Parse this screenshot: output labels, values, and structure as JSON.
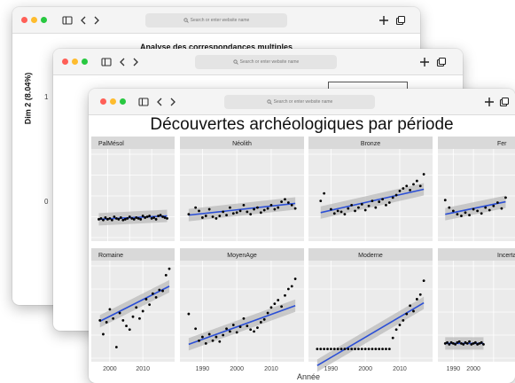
{
  "browser": {
    "address_placeholder": "Search or enter website name",
    "icons": [
      "sidebar-icon",
      "back-icon",
      "forward-icon",
      "search-icon",
      "new-tab-icon",
      "tabs-icon"
    ]
  },
  "window_mca": {
    "title": "Analyse des correspondances multiples",
    "y_axis_label": "Dim 2 (8.04%)",
    "y_ticks": [
      "1",
      "0"
    ]
  },
  "window_middle": {
    "y_ticks": [
      "1",
      "0"
    ]
  },
  "chart_data": {
    "type": "scatter",
    "title": "Découvertes archéologiques par période",
    "xlabel": "Année",
    "facets": [
      {
        "name": "PalMésol",
        "x_ticks": [],
        "xlim": [
          1985,
          2018
        ],
        "ylim": [
          0,
          10
        ],
        "points": [
          [
            1986,
            2.2
          ],
          [
            1987,
            2.3
          ],
          [
            1988,
            2.1
          ],
          [
            1989,
            2.4
          ],
          [
            1990,
            2.2
          ],
          [
            1991,
            2.3
          ],
          [
            1992,
            2.1
          ],
          [
            1993,
            2.5
          ],
          [
            1994,
            2.3
          ],
          [
            1995,
            2.2
          ],
          [
            1996,
            2.4
          ],
          [
            1997,
            2.1
          ],
          [
            1998,
            2.2
          ],
          [
            1999,
            2.3
          ],
          [
            2000,
            2.5
          ],
          [
            2001,
            2.3
          ],
          [
            2002,
            2.2
          ],
          [
            2003,
            2.4
          ],
          [
            2004,
            2.3
          ],
          [
            2005,
            2.2
          ],
          [
            2006,
            2.6
          ],
          [
            2007,
            2.4
          ],
          [
            2008,
            2.5
          ],
          [
            2009,
            2.6
          ],
          [
            2010,
            2.3
          ],
          [
            2011,
            2.4
          ],
          [
            2012,
            2.2
          ],
          [
            2013,
            2.6
          ],
          [
            2014,
            2.7
          ],
          [
            2015,
            2.5
          ],
          [
            2016,
            2.4
          ],
          [
            2017,
            2.3
          ]
        ],
        "trend": [
          2.2,
          2.6
        ]
      },
      {
        "name": "Néolith",
        "x_ticks": [],
        "xlim": [
          1985,
          2018
        ],
        "ylim": [
          0,
          10
        ],
        "points": [
          [
            1986,
            2.8
          ],
          [
            1988,
            3.6
          ],
          [
            1989,
            3.2
          ],
          [
            1990,
            2.4
          ],
          [
            1991,
            2.6
          ],
          [
            1992,
            3.4
          ],
          [
            1993,
            2.5
          ],
          [
            1994,
            2.3
          ],
          [
            1995,
            2.6
          ],
          [
            1996,
            3.1
          ],
          [
            1997,
            2.7
          ],
          [
            1998,
            3.6
          ],
          [
            1999,
            2.9
          ],
          [
            2000,
            3.0
          ],
          [
            2001,
            3.2
          ],
          [
            2002,
            3.9
          ],
          [
            2003,
            3.1
          ],
          [
            2004,
            2.8
          ],
          [
            2005,
            3.4
          ],
          [
            2006,
            3.6
          ],
          [
            2007,
            3.0
          ],
          [
            2008,
            3.3
          ],
          [
            2009,
            3.5
          ],
          [
            2010,
            3.9
          ],
          [
            2011,
            3.4
          ],
          [
            2012,
            3.6
          ],
          [
            2013,
            4.3
          ],
          [
            2014,
            4.6
          ],
          [
            2015,
            4.2
          ],
          [
            2016,
            3.9
          ],
          [
            2017,
            3.5
          ]
        ],
        "trend": [
          2.7,
          4.1
        ]
      },
      {
        "name": "Bronze",
        "x_ticks": [],
        "xlim": [
          1985,
          2018
        ],
        "ylim": [
          0,
          10
        ],
        "points": [
          [
            1987,
            4.4
          ],
          [
            1988,
            5.3
          ],
          [
            1990,
            3.4
          ],
          [
            1991,
            2.9
          ],
          [
            1992,
            3.2
          ],
          [
            1993,
            3.1
          ],
          [
            1994,
            2.8
          ],
          [
            1995,
            3.5
          ],
          [
            1996,
            3.9
          ],
          [
            1997,
            3.2
          ],
          [
            1998,
            3.6
          ],
          [
            1999,
            4.0
          ],
          [
            2000,
            3.3
          ],
          [
            2001,
            3.8
          ],
          [
            2002,
            4.4
          ],
          [
            2003,
            3.6
          ],
          [
            2004,
            4.3
          ],
          [
            2005,
            4.6
          ],
          [
            2006,
            3.9
          ],
          [
            2007,
            4.2
          ],
          [
            2008,
            4.8
          ],
          [
            2009,
            5.1
          ],
          [
            2010,
            5.6
          ],
          [
            2011,
            5.9
          ],
          [
            2012,
            6.2
          ],
          [
            2013,
            5.7
          ],
          [
            2014,
            6.4
          ],
          [
            2015,
            6.8
          ],
          [
            2016,
            6.2
          ],
          [
            2017,
            7.6
          ]
        ],
        "trend": [
          3.0,
          5.8
        ]
      },
      {
        "name": "Fer",
        "x_ticks": [],
        "xlim": [
          1985,
          2018
        ],
        "ylim": [
          0,
          10
        ],
        "points": [
          [
            1986,
            4.5
          ],
          [
            1988,
            3.6
          ],
          [
            1990,
            3.2
          ],
          [
            1992,
            2.8
          ],
          [
            1994,
            2.6
          ],
          [
            1996,
            3.0
          ],
          [
            1998,
            2.7
          ],
          [
            2000,
            3.4
          ],
          [
            2002,
            3.2
          ],
          [
            2004,
            2.9
          ],
          [
            2006,
            3.6
          ],
          [
            2008,
            3.3
          ],
          [
            2010,
            3.8
          ],
          [
            2012,
            4.2
          ],
          [
            2014,
            3.5
          ],
          [
            2016,
            4.8
          ]
        ],
        "trend": [
          2.8,
          4.3
        ]
      },
      {
        "name": "Romaine",
        "x_ticks": [
          "2000",
          "2010"
        ],
        "xlim": [
          1996,
          2018
        ],
        "ylim": [
          0,
          10
        ],
        "points": [
          [
            1997,
            4.1
          ],
          [
            1998,
            2.6
          ],
          [
            1999,
            3.9
          ],
          [
            2000,
            5.3
          ],
          [
            2001,
            4.3
          ],
          [
            2002,
            1.2
          ],
          [
            2003,
            4.9
          ],
          [
            2004,
            4.1
          ],
          [
            2005,
            3.5
          ],
          [
            2006,
            3.1
          ],
          [
            2007,
            4.5
          ],
          [
            2008,
            5.5
          ],
          [
            2009,
            4.3
          ],
          [
            2010,
            5.1
          ],
          [
            2011,
            6.4
          ],
          [
            2012,
            5.8
          ],
          [
            2013,
            7.0
          ],
          [
            2014,
            6.6
          ],
          [
            2015,
            7.4
          ],
          [
            2016,
            7.3
          ],
          [
            2017,
            9.0
          ],
          [
            2018,
            9.7
          ]
        ],
        "trend": [
          4.0,
          7.8
        ]
      },
      {
        "name": "MoyenAge",
        "x_ticks": [
          "1990",
          "2000",
          "2010"
        ],
        "xlim": [
          1985,
          2018
        ],
        "ylim": [
          0,
          10
        ],
        "points": [
          [
            1986,
            4.8
          ],
          [
            1988,
            3.2
          ],
          [
            1989,
            1.9
          ],
          [
            1990,
            2.3
          ],
          [
            1991,
            1.6
          ],
          [
            1992,
            2.6
          ],
          [
            1993,
            1.9
          ],
          [
            1994,
            2.3
          ],
          [
            1995,
            1.8
          ],
          [
            1996,
            2.5
          ],
          [
            1997,
            3.2
          ],
          [
            1998,
            2.9
          ],
          [
            1999,
            3.6
          ],
          [
            2000,
            2.8
          ],
          [
            2001,
            3.4
          ],
          [
            2002,
            4.3
          ],
          [
            2003,
            3.5
          ],
          [
            2004,
            3.1
          ],
          [
            2005,
            2.9
          ],
          [
            2006,
            3.3
          ],
          [
            2007,
            3.9
          ],
          [
            2008,
            4.2
          ],
          [
            2009,
            4.9
          ],
          [
            2010,
            5.5
          ],
          [
            2011,
            5.9
          ],
          [
            2012,
            6.3
          ],
          [
            2013,
            5.6
          ],
          [
            2014,
            6.8
          ],
          [
            2015,
            7.5
          ],
          [
            2016,
            7.8
          ],
          [
            2017,
            8.6
          ]
        ],
        "trend": [
          1.5,
          5.7
        ]
      },
      {
        "name": "Moderne",
        "x_ticks": [
          "1990",
          "2000",
          "2010"
        ],
        "xlim": [
          1985,
          2018
        ],
        "ylim": [
          0,
          10
        ],
        "points": [
          [
            1986,
            1.0
          ],
          [
            1987,
            1.0
          ],
          [
            1988,
            1.0
          ],
          [
            1989,
            1.0
          ],
          [
            1990,
            1.0
          ],
          [
            1991,
            1.0
          ],
          [
            1992,
            1.0
          ],
          [
            1993,
            1.0
          ],
          [
            1994,
            1.0
          ],
          [
            1995,
            1.0
          ],
          [
            1996,
            1.0
          ],
          [
            1997,
            1.0
          ],
          [
            1998,
            1.0
          ],
          [
            1999,
            1.0
          ],
          [
            2000,
            1.0
          ],
          [
            2001,
            1.0
          ],
          [
            2002,
            1.0
          ],
          [
            2003,
            1.0
          ],
          [
            2004,
            1.0
          ],
          [
            2005,
            1.0
          ],
          [
            2006,
            1.0
          ],
          [
            2007,
            1.0
          ],
          [
            2008,
            2.2
          ],
          [
            2009,
            3.1
          ],
          [
            2010,
            3.6
          ],
          [
            2011,
            4.1
          ],
          [
            2012,
            4.8
          ],
          [
            2013,
            5.7
          ],
          [
            2014,
            5.1
          ],
          [
            2015,
            6.4
          ],
          [
            2016,
            6.9
          ],
          [
            2017,
            8.4
          ]
        ],
        "trend": [
          -0.8,
          6.0
        ]
      },
      {
        "name": "Incertain",
        "x_ticks": [
          "1990",
          "2000"
        ],
        "xlim": [
          1985,
          2018
        ],
        "ylim": [
          0,
          10
        ],
        "points": [
          [
            1986,
            1.6
          ],
          [
            1987,
            1.7
          ],
          [
            1988,
            1.5
          ],
          [
            1989,
            1.7
          ],
          [
            1990,
            1.6
          ],
          [
            1991,
            1.5
          ],
          [
            1992,
            1.7
          ],
          [
            1993,
            1.8
          ],
          [
            1994,
            1.6
          ],
          [
            1995,
            1.5
          ],
          [
            1996,
            1.7
          ],
          [
            1997,
            1.6
          ],
          [
            1998,
            1.8
          ],
          [
            1999,
            1.5
          ],
          [
            2000,
            1.6
          ],
          [
            2001,
            1.7
          ],
          [
            2002,
            1.5
          ],
          [
            2003,
            1.6
          ],
          [
            2004,
            1.7
          ],
          [
            2005,
            1.5
          ]
        ],
        "trend": [
          1.6,
          1.6
        ]
      }
    ],
    "grid": true,
    "colors": {
      "points": "#000000",
      "trend": "#2b4fd6",
      "band": "#b8b8b8",
      "panel_bg": "#ebebeb",
      "strip_bg": "#d9d9d9"
    }
  }
}
